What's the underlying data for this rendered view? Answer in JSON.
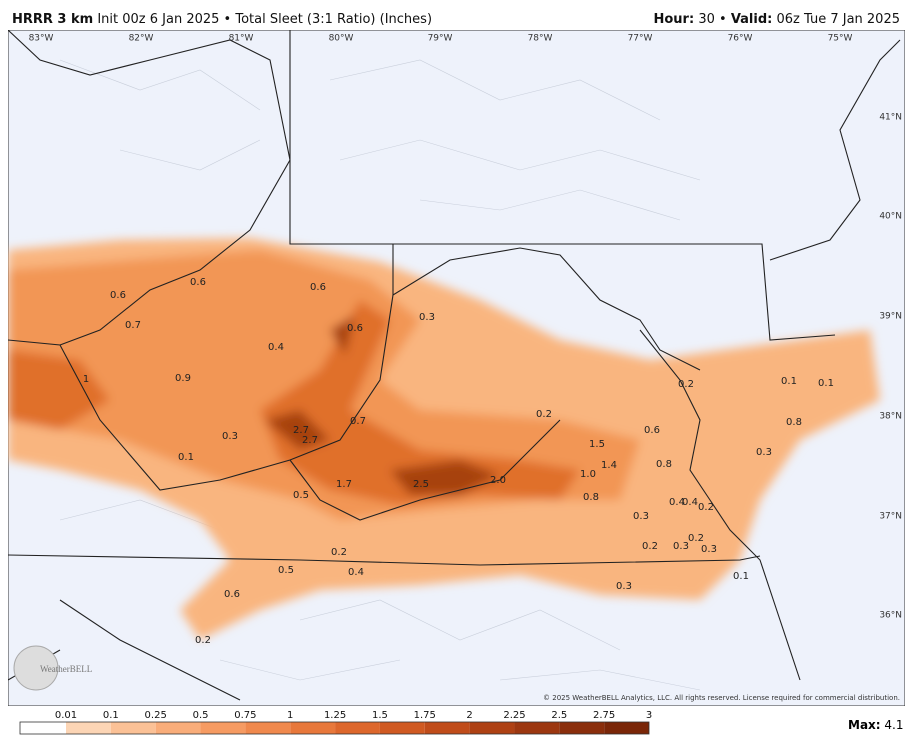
{
  "header": {
    "model": "HRRR 3 km",
    "description": "Init 00z 6 Jan 2025 • Total Sleet (3:1 Ratio) (Inches)",
    "hour_label": "Hour:",
    "hour": "30",
    "separator": "•",
    "valid_label": "Valid:",
    "valid": "06z Tue 7 Jan 2025"
  },
  "map": {
    "longitudes": [
      "83°W",
      "82°W",
      "81°W",
      "80°W",
      "79°W",
      "78°W",
      "77°W",
      "76°W",
      "75°W"
    ],
    "latitudes": [
      "41°N",
      "40°N",
      "39°N",
      "38°N",
      "37°N",
      "36°N"
    ],
    "labels": [
      "0.6",
      "0.6",
      "0.6",
      "0.7",
      "0.6",
      "0.3",
      "0.4",
      "1",
      "0.9",
      "0.7",
      "0.2",
      "2.7",
      "2.7",
      "0.3",
      "0.1",
      "1.5",
      "0.6",
      "1.4",
      "0.8",
      "1.0",
      "1.7",
      "2.5",
      "2.0",
      "0.5",
      "0.8",
      "0.4",
      "0.4",
      "0.2",
      "0.3",
      "0.2",
      "0.2",
      "0.3",
      "0.3",
      "0.2",
      "0.5",
      "0.4",
      "0.1",
      "0.3",
      "0.6",
      "0.2",
      "0.2",
      "0.1",
      "0.1",
      "0.8",
      "0.3"
    ],
    "copyright": "© 2025 WeatherBELL Analytics, LLC. All rights reserved. License required for commercial distribution.",
    "logo": "WeatherBELL"
  },
  "legend": {
    "ticks": [
      "0.01",
      "0.1",
      "0.25",
      "0.5",
      "0.75",
      "1",
      "1.25",
      "1.5",
      "1.75",
      "2",
      "2.25",
      "2.5",
      "2.75",
      "3"
    ],
    "colors": [
      "#ffffff",
      "#fcd5b5",
      "#fbc196",
      "#f9ad7a",
      "#f69b62",
      "#f0894d",
      "#e8783b",
      "#dd672c",
      "#d05a22",
      "#c04c1a",
      "#ae4114",
      "#9c3710",
      "#8a2e0c",
      "#7a2608"
    ],
    "max_label": "Max:",
    "max": "4.1"
  }
}
